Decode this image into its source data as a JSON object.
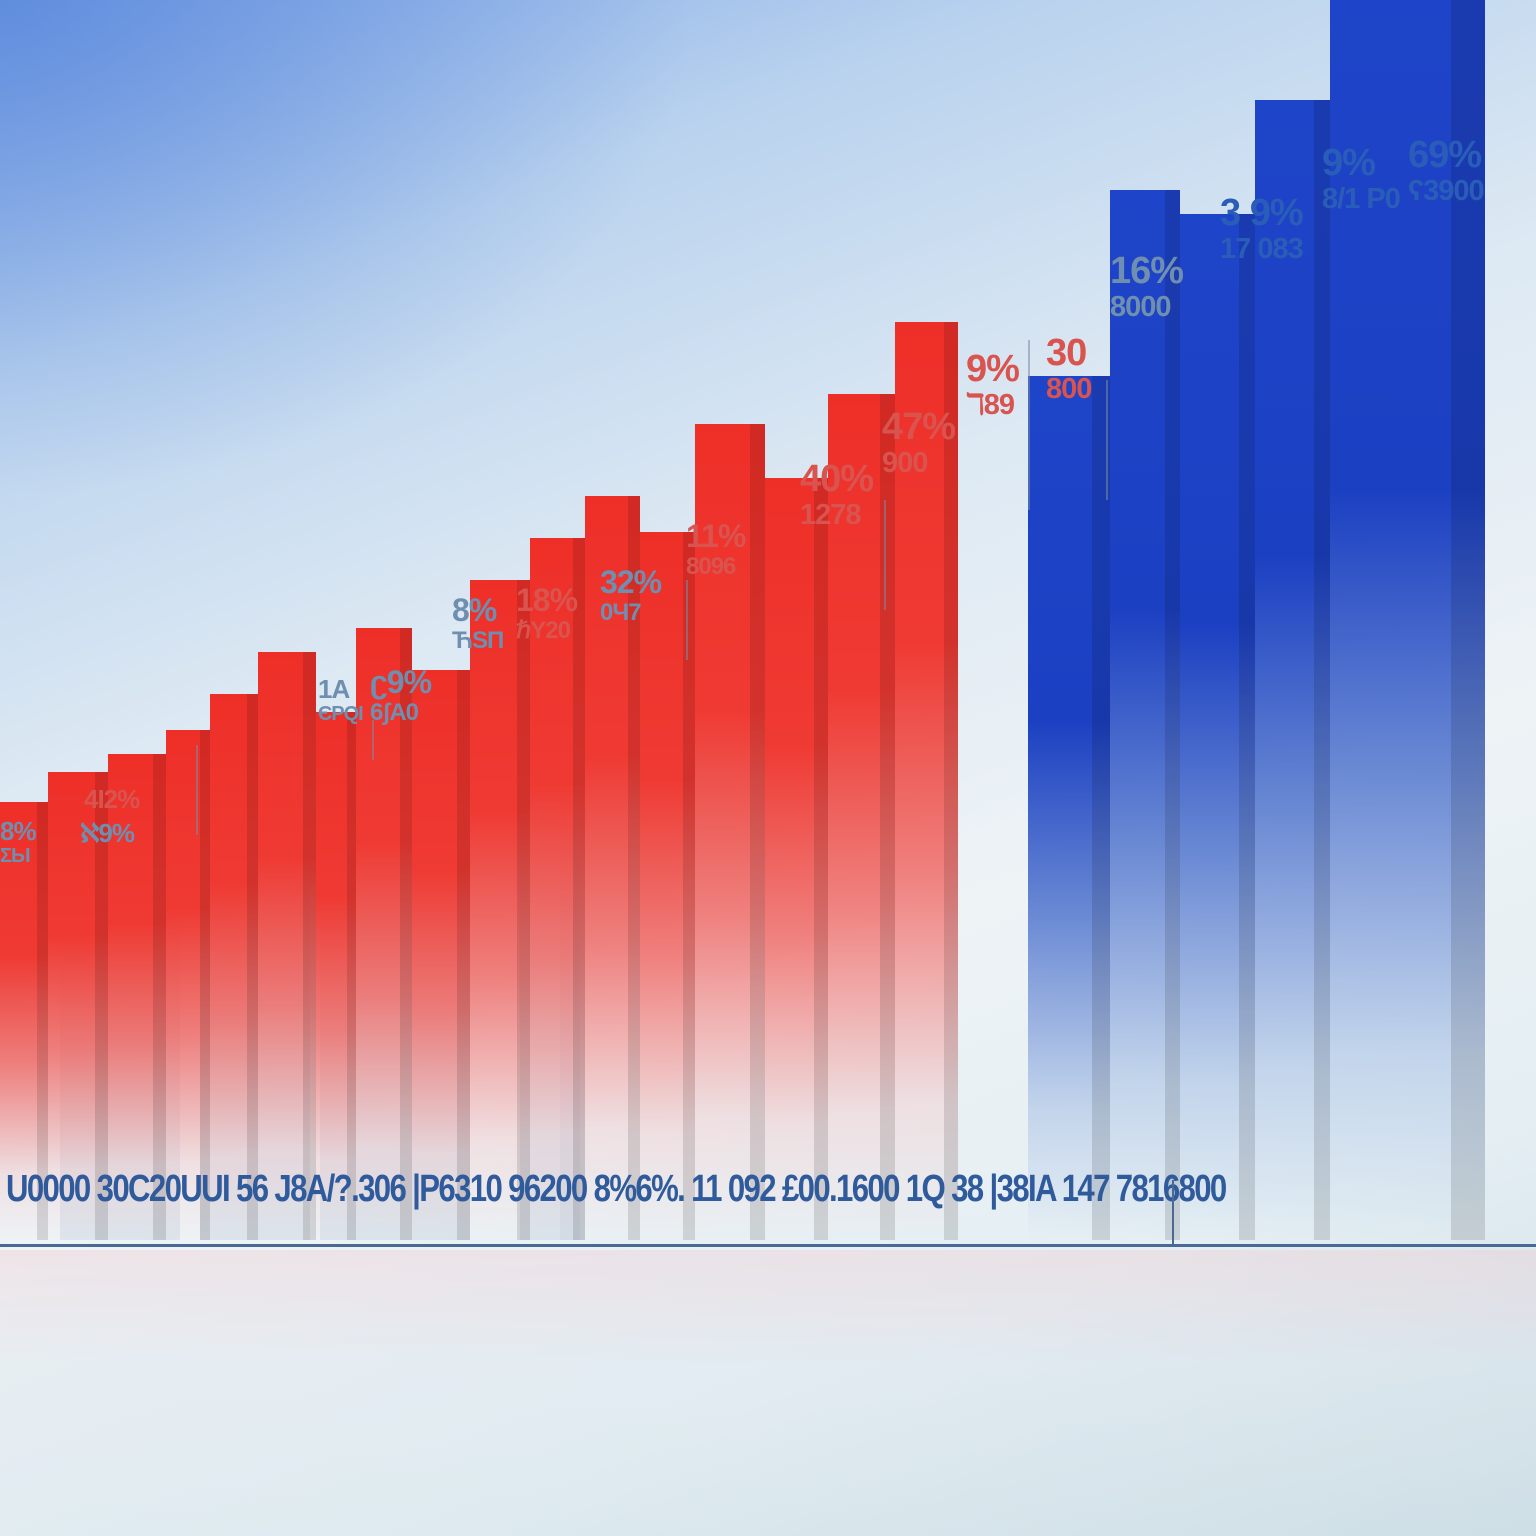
{
  "chart_data": {
    "type": "bar",
    "title": "",
    "xlabel": "",
    "ylabel": "",
    "grid": false,
    "legend": null,
    "series": [
      {
        "name": "red",
        "color": "#ee2f28",
        "values": [
          18,
          23,
          26,
          30,
          36,
          43,
          33,
          47,
          40,
          55,
          62,
          69,
          63,
          81,
          72,
          86,
          98
        ]
      },
      {
        "name": "blue",
        "color": "#1e44c9",
        "values": [
          89,
          120,
          116,
          135,
          153
        ]
      }
    ],
    "bar_annotations": [
      {
        "pct": "8%",
        "value": "ΣЫ",
        "color": "grey"
      },
      {
        "pct": "4I2%",
        "value": "",
        "color": "red"
      },
      {
        "pct": "ℵ9%",
        "value": "",
        "color": "grey"
      },
      {
        "pct": "1A",
        "value": "ЄPQI",
        "color": "grey"
      },
      {
        "pct": "ʗ9%",
        "value": "6ʃA0",
        "color": "grey"
      },
      {
        "pct": "8%",
        "value": "ЋSП",
        "color": "grey"
      },
      {
        "pct": "18%",
        "value": "ℏY20",
        "color": "red"
      },
      {
        "pct": "32%",
        "value": "0Ч7",
        "color": "grey"
      },
      {
        "pct": "11%",
        "value": "8096",
        "color": "red"
      },
      {
        "pct": "40%",
        "value": "1278",
        "color": "red"
      },
      {
        "pct": "47%",
        "value": "900",
        "color": "red"
      },
      {
        "pct": "9%",
        "value": "ℸ89",
        "color": "red"
      },
      {
        "pct": "30",
        "value": "800",
        "color": "red"
      },
      {
        "pct": "16%",
        "value": "8000",
        "color": "grey"
      },
      {
        "pct": "3 9%",
        "value": "17 083",
        "color": "blue"
      },
      {
        "pct": "9%",
        "value": "8/1 P0",
        "color": "blue"
      },
      {
        "pct": "69%",
        "value": "ʕ3900",
        "color": "blue"
      }
    ],
    "x_tick_text": "U0000 30C20UUI 56 J8A/?.306 |P6310 96200 8%6%. 11 092 £00.1600 1Q 38 |38IA 147 7816800"
  }
}
